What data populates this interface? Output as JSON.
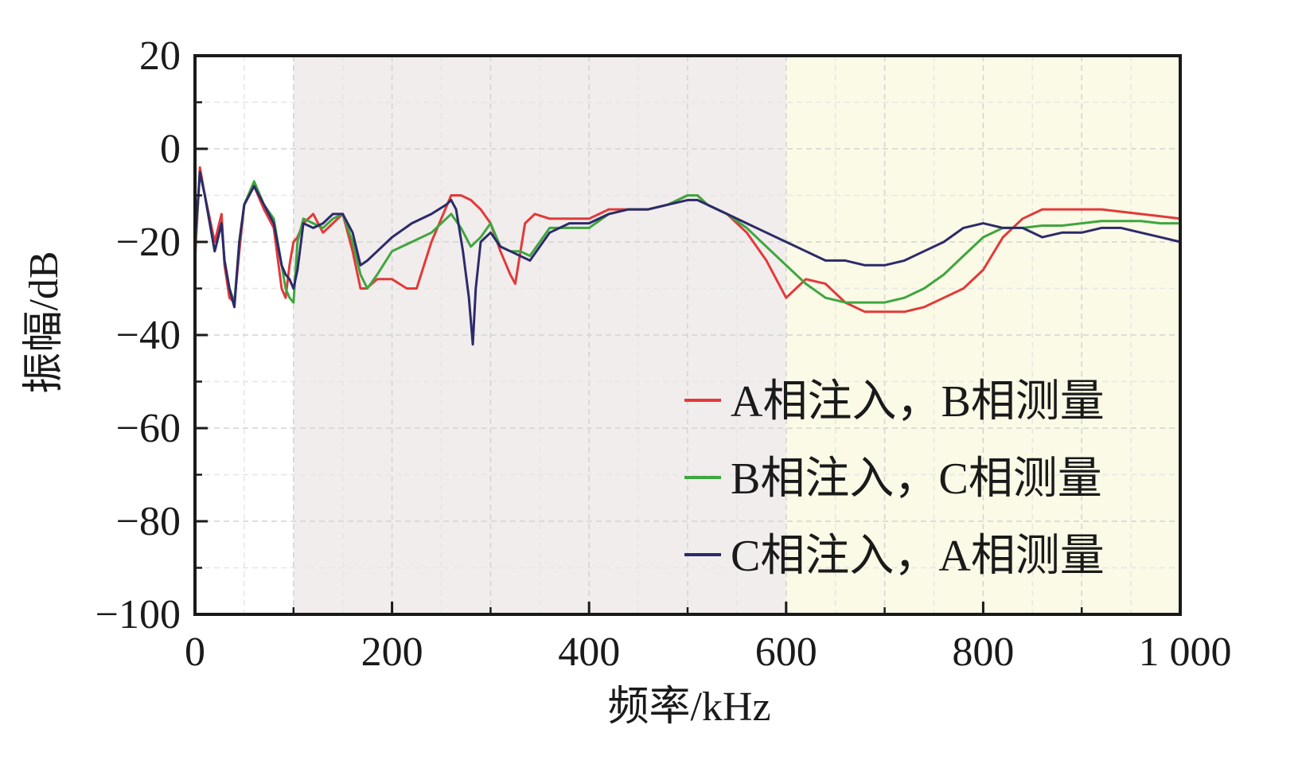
{
  "chart_data": {
    "type": "line",
    "title": "",
    "xlabel": "频率/kHz",
    "ylabel": "振幅/dB",
    "xlim": [
      0,
      1000
    ],
    "ylim": [
      -100,
      20
    ],
    "xticks": [
      0,
      200,
      400,
      600,
      800,
      1000
    ],
    "xtick_labels": [
      "0",
      "200",
      "400",
      "600",
      "800",
      "1 000"
    ],
    "yticks": [
      20,
      0,
      -20,
      -40,
      -60,
      -80,
      -100
    ],
    "ytick_labels": [
      "20",
      "0",
      "−20",
      "−40",
      "−60",
      "−80",
      "−100"
    ],
    "grid": true,
    "legend_position": "lower-right",
    "background_bands": [
      {
        "x0": 100,
        "x1": 600,
        "color": "#f1edec"
      },
      {
        "x0": 600,
        "x1": 1000,
        "color": "#fbfae6"
      }
    ],
    "series": [
      {
        "name": "A相注入，B相测量",
        "color": "#e23a3a",
        "x": [
          0,
          5,
          10,
          20,
          27,
          30,
          35,
          40,
          45,
          50,
          60,
          70,
          80,
          88,
          92,
          96,
          100,
          104,
          110,
          120,
          130,
          140,
          150,
          160,
          168,
          174,
          185,
          200,
          215,
          225,
          240,
          260,
          270,
          280,
          290,
          300,
          310,
          320,
          325,
          335,
          345,
          360,
          380,
          400,
          420,
          440,
          460,
          480,
          500,
          510,
          520,
          540,
          560,
          580,
          600,
          610,
          620,
          640,
          660,
          680,
          700,
          720,
          740,
          760,
          780,
          800,
          820,
          840,
          860,
          880,
          900,
          920,
          940,
          960,
          980,
          1000
        ],
        "y": [
          -24,
          -4,
          -10,
          -20,
          -14,
          -25,
          -32,
          -33,
          -22,
          -12,
          -8,
          -13,
          -17,
          -30,
          -32,
          -25,
          -20,
          -19,
          -16,
          -14,
          -18,
          -16,
          -14,
          -22,
          -30,
          -30,
          -28,
          -28,
          -30,
          -30,
          -20,
          -10,
          -10,
          -11,
          -13,
          -16,
          -22,
          -27,
          -29,
          -16,
          -14,
          -15,
          -15,
          -15,
          -13,
          -13,
          -13,
          -12,
          -10,
          -10,
          -12,
          -14,
          -18,
          -24,
          -32,
          -30,
          -28,
          -29,
          -33,
          -35,
          -35,
          -35,
          -34,
          -32,
          -30,
          -26,
          -19,
          -15,
          -13,
          -13,
          -13,
          -13,
          -13.5,
          -14,
          -14.5,
          -15
        ]
      },
      {
        "name": "B相注入，C相测量",
        "color": "#3fa63f",
        "x": [
          0,
          5,
          10,
          20,
          27,
          30,
          35,
          40,
          45,
          50,
          60,
          70,
          80,
          88,
          92,
          96,
          100,
          104,
          110,
          120,
          130,
          140,
          150,
          160,
          168,
          175,
          185,
          200,
          220,
          240,
          255,
          260,
          270,
          280,
          290,
          300,
          310,
          320,
          330,
          340,
          360,
          380,
          400,
          420,
          440,
          460,
          480,
          500,
          510,
          520,
          540,
          560,
          580,
          600,
          620,
          640,
          660,
          680,
          700,
          720,
          740,
          760,
          780,
          800,
          820,
          840,
          860,
          880,
          900,
          920,
          940,
          960,
          980,
          1000
        ],
        "y": [
          -22,
          -5,
          -10,
          -22,
          -16,
          -24,
          -30,
          -33,
          -20,
          -12,
          -7,
          -12,
          -15,
          -25,
          -30,
          -32,
          -33,
          -20,
          -15,
          -16,
          -17,
          -15,
          -14,
          -20,
          -27,
          -30,
          -27,
          -22,
          -20,
          -18,
          -15,
          -14,
          -17,
          -21,
          -19,
          -16,
          -21,
          -22,
          -22,
          -23,
          -17,
          -17,
          -17,
          -14,
          -13,
          -13,
          -12,
          -10,
          -10,
          -12,
          -14,
          -17,
          -21,
          -25,
          -29,
          -32,
          -33,
          -33,
          -33,
          -32,
          -30,
          -27,
          -23,
          -19,
          -17,
          -17,
          -16.5,
          -16.5,
          -16,
          -15.5,
          -15.5,
          -15.5,
          -16,
          -16
        ]
      },
      {
        "name": "C相注入，A相测量",
        "color": "#2d2a6b",
        "x": [
          0,
          5,
          10,
          20,
          27,
          30,
          35,
          40,
          45,
          50,
          60,
          70,
          80,
          88,
          92,
          96,
          100,
          104,
          110,
          120,
          130,
          140,
          150,
          160,
          168,
          175,
          185,
          200,
          220,
          240,
          255,
          260,
          265,
          272,
          278,
          282,
          285,
          290,
          300,
          310,
          320,
          340,
          360,
          380,
          400,
          420,
          440,
          460,
          480,
          500,
          510,
          520,
          540,
          560,
          580,
          600,
          620,
          640,
          660,
          680,
          700,
          720,
          740,
          760,
          780,
          800,
          820,
          840,
          860,
          880,
          900,
          920,
          940,
          960,
          980,
          1000
        ],
        "y": [
          -20,
          -5,
          -10,
          -22,
          -16,
          -24,
          -30,
          -34,
          -20,
          -12,
          -8,
          -12,
          -16,
          -25,
          -27,
          -28,
          -30,
          -26,
          -16,
          -17,
          -16,
          -14,
          -14,
          -18,
          -25,
          -24,
          -22,
          -19,
          -16,
          -14,
          -12,
          -11,
          -13,
          -22,
          -32,
          -42,
          -30,
          -20,
          -18,
          -21,
          -22,
          -24,
          -18,
          -16,
          -16,
          -14,
          -13,
          -13,
          -12,
          -11,
          -11,
          -12,
          -14,
          -16,
          -18,
          -20,
          -22,
          -24,
          -24,
          -25,
          -25,
          -24,
          -22,
          -20,
          -17,
          -16,
          -17,
          -17,
          -19,
          -18,
          -18,
          -17,
          -17,
          -18,
          -19,
          -20
        ]
      }
    ]
  }
}
